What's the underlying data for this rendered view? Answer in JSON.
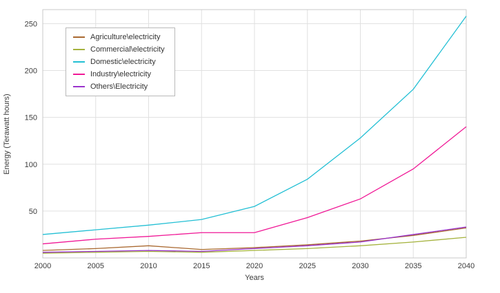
{
  "chart_data": {
    "type": "line",
    "x": [
      2000,
      2005,
      2010,
      2015,
      2020,
      2025,
      2030,
      2035,
      2040
    ],
    "series": [
      {
        "name": "Agriculture\\electricity",
        "color": "#a9682f",
        "values": [
          8,
          10,
          13,
          9,
          11,
          14,
          18,
          24,
          32
        ]
      },
      {
        "name": "Commercial\\electricity",
        "color": "#a4b23c",
        "values": [
          5,
          6,
          7,
          6,
          8,
          10,
          13,
          17,
          22
        ]
      },
      {
        "name": "Domestic\\electricity",
        "color": "#22bfd4",
        "values": [
          25,
          30,
          35,
          41,
          55,
          84,
          128,
          180,
          258
        ]
      },
      {
        "name": "Industry\\electricity",
        "color": "#f01896",
        "values": [
          15,
          20,
          23,
          27,
          27,
          43,
          63,
          95,
          140
        ]
      },
      {
        "name": "Others\\Electricity",
        "color": "#9a32cc",
        "values": [
          6,
          7,
          8,
          7,
          10,
          13,
          17,
          25,
          33
        ]
      }
    ],
    "title": "",
    "xlabel": "Years",
    "ylabel": "Energy (Terawatt hours)",
    "xlim": [
      2000,
      2040
    ],
    "ylim": [
      0,
      265
    ],
    "xticks": [
      2000,
      2005,
      2010,
      2015,
      2020,
      2025,
      2030,
      2035,
      2040
    ],
    "yticks": [
      50,
      100,
      150,
      200,
      250
    ],
    "grid": true,
    "legend_position": "top-left",
    "colors": {
      "gridline": "#e0e0e0",
      "plot_border": "#c9c9c9",
      "tick_text": "#3c3c3c"
    }
  }
}
